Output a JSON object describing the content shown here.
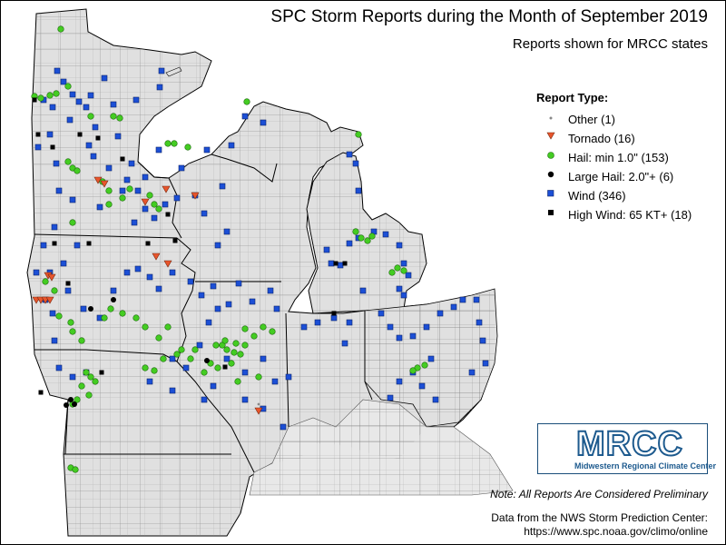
{
  "header": {
    "title": "SPC Storm Reports during the Month of September 2019",
    "subtitle": "Reports shown for MRCC states"
  },
  "legend": {
    "title": "Report Type:",
    "items": [
      {
        "label": "Other (1)",
        "symbol": "small-dot",
        "color": "#888888"
      },
      {
        "label": "Tornado (16)",
        "symbol": "triangle-down",
        "color": "#e8552c"
      },
      {
        "label": "Hail: min 1.0\" (153)",
        "symbol": "circle",
        "color": "#44cc22"
      },
      {
        "label": "Large Hail: 2.0\"+ (6)",
        "symbol": "circle",
        "color": "#000000"
      },
      {
        "label": "Wind (346)",
        "symbol": "square",
        "color": "#1c4fd6"
      },
      {
        "label": "High Wind: 65 KT+ (18)",
        "symbol": "square",
        "color": "#000000"
      }
    ]
  },
  "logo": {
    "text": "MRCC",
    "subtitle": "Midwestern Regional Climate Center"
  },
  "footer": {
    "note": "Note: All Reports Are Considered Preliminary",
    "source_line1": "Data from the NWS Storm Prediction Center:",
    "source_line2": "https://www.spc.noaa.gov/climo/online"
  },
  "colors": {
    "land": "#e0e0e0",
    "water": "#ffffff",
    "state_border": "#000000",
    "county_border": "#707070"
  }
}
